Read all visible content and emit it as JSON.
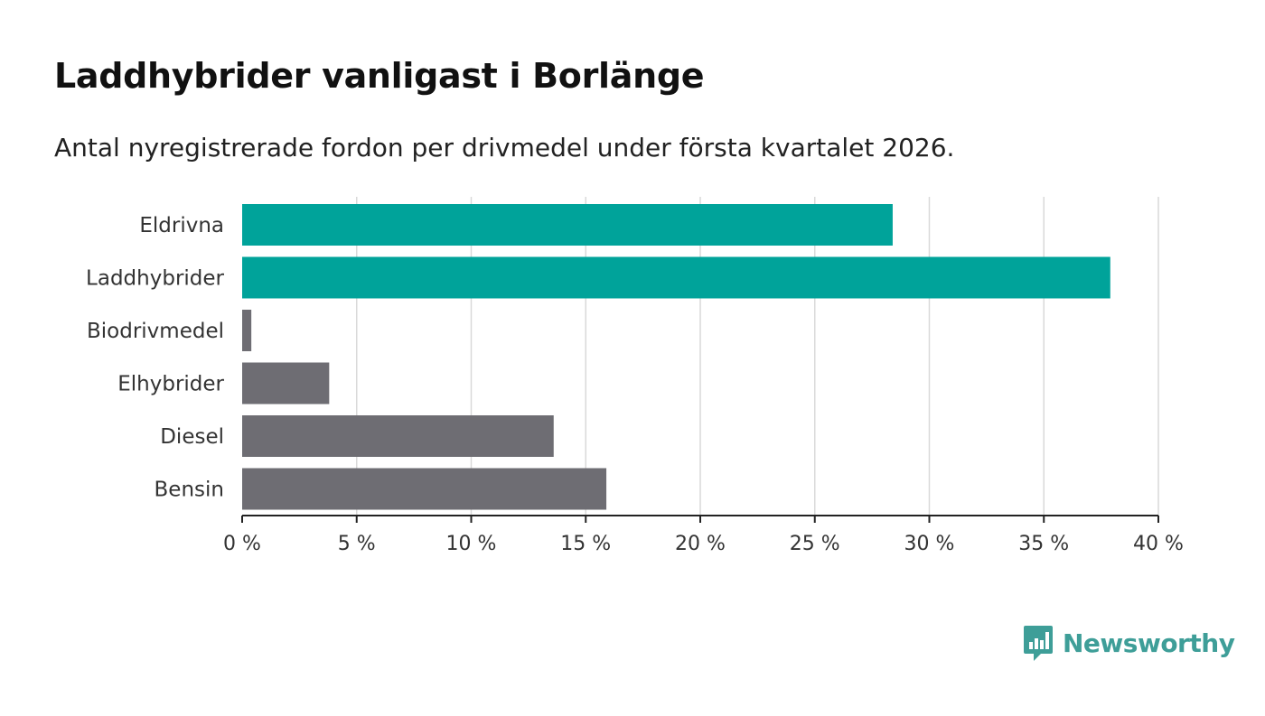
{
  "header": {
    "title": "Laddhybrider vanligast i Borlänge",
    "subtitle": "Antal nyregistrerade fordon per drivmedel under första kvartalet 2026."
  },
  "chart_data": {
    "type": "bar",
    "orientation": "horizontal",
    "categories": [
      "Eldrivna",
      "Laddhybrider",
      "Biodrivmedel",
      "Elhybrider",
      "Diesel",
      "Bensin"
    ],
    "values": [
      28.4,
      37.9,
      0.4,
      3.8,
      13.6,
      15.9
    ],
    "highlighted": [
      true,
      true,
      false,
      false,
      false,
      false
    ],
    "xlim": [
      0,
      40
    ],
    "xticks": [
      0,
      5,
      10,
      15,
      20,
      25,
      30,
      35,
      40
    ],
    "xtick_labels": [
      "0 %",
      "5 %",
      "10 %",
      "15 %",
      "20 %",
      "25 %",
      "30 %",
      "35 %",
      "40 %"
    ],
    "xlabel": "",
    "ylabel": "",
    "grid": true,
    "colors": {
      "highlight": "#00a39a",
      "default": "#6e6d73",
      "grid": "#d9d9d9",
      "axis": "#222222"
    }
  },
  "brand": {
    "name": "Newsworthy",
    "color": "#3e9e98"
  }
}
